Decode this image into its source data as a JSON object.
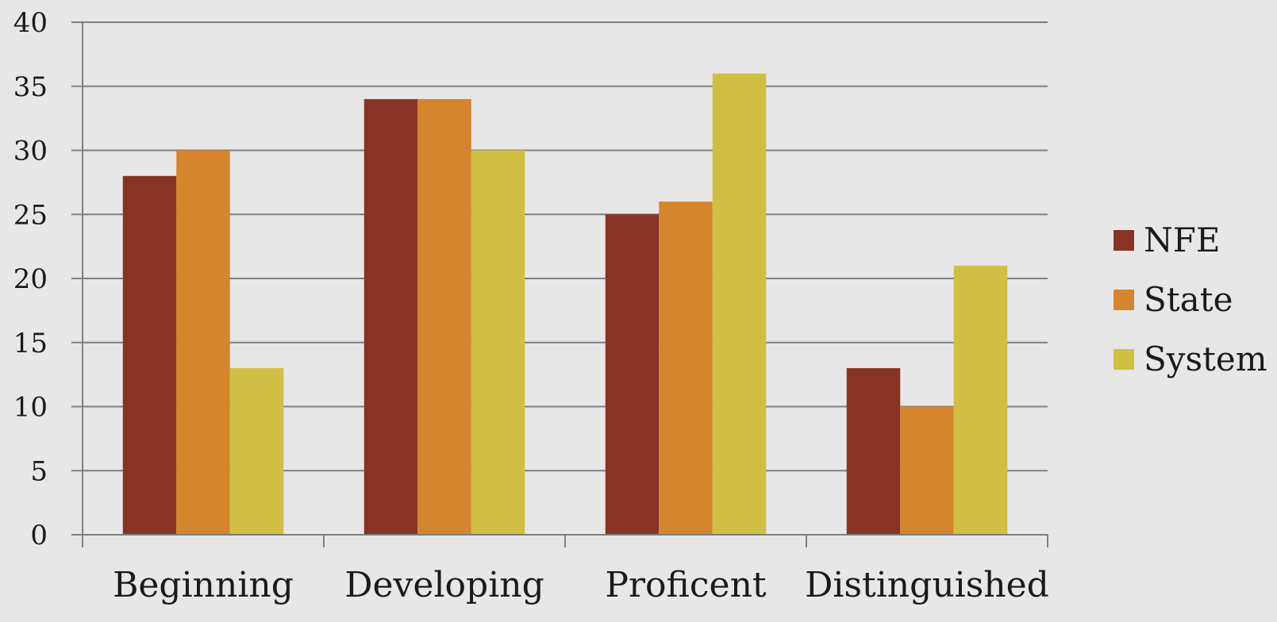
{
  "chart_data": {
    "type": "bar",
    "title": "",
    "xlabel": "",
    "ylabel": "",
    "categories": [
      "Beginning",
      "Developing",
      "Proficent",
      "Distinguished"
    ],
    "series": [
      {
        "name": "NFE",
        "color": "#873424",
        "values": [
          28,
          34,
          25,
          13
        ]
      },
      {
        "name": "State",
        "color": "#d5852e",
        "values": [
          30,
          34,
          26,
          10
        ]
      },
      {
        "name": "System",
        "color": "#d0bf44",
        "values": [
          13,
          30,
          36,
          21
        ]
      }
    ],
    "ylim": [
      0,
      40
    ],
    "yticks": [
      0,
      5,
      10,
      15,
      20,
      25,
      30,
      35,
      40
    ],
    "grid": true,
    "legend": "right"
  }
}
